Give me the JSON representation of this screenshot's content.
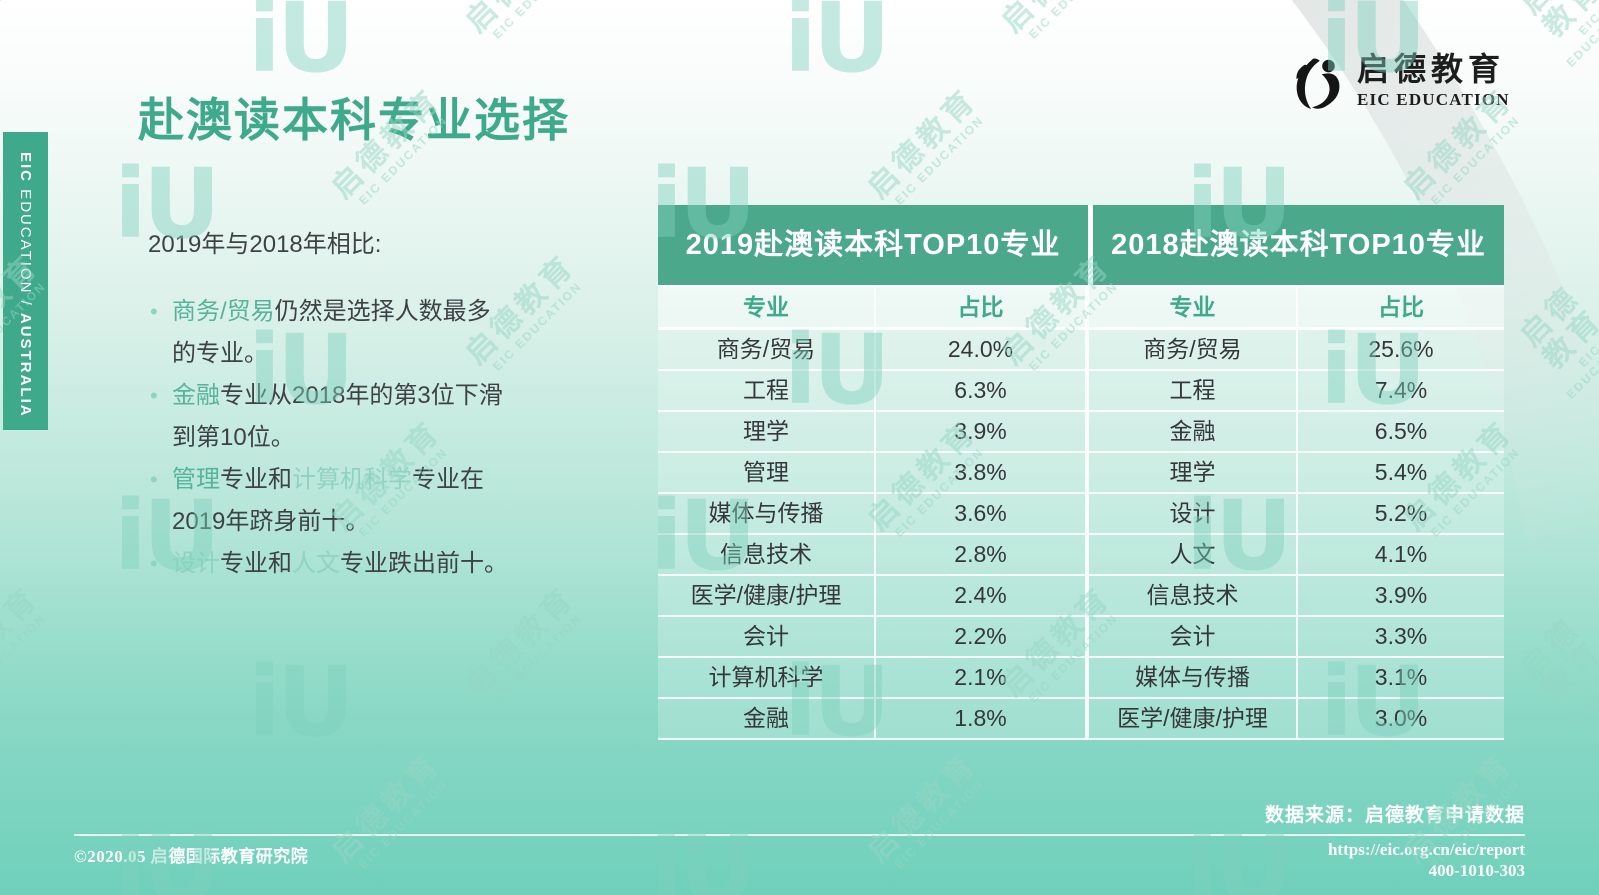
{
  "slide": {
    "title": "赴澳读本科专业选择",
    "logo": {
      "name_cn": "启德教育",
      "name_en": "EIC EDUCATION"
    },
    "side_tab": {
      "brand_bold": "EIC",
      "brand_rest": " EDUCATION / ",
      "region_bold": "AUSTRALIA"
    },
    "intro": {
      "lead": "2019年与2018年相比:",
      "bullets": [
        {
          "segments": [
            {
              "text": "商务/贸易",
              "tone": "green"
            },
            {
              "text": "仍然是选择人数最多\n的专业。",
              "tone": "plain"
            }
          ]
        },
        {
          "segments": [
            {
              "text": "金融",
              "tone": "green"
            },
            {
              "text": "专业从2018年的第3位下滑\n到第10位。",
              "tone": "plain"
            }
          ]
        },
        {
          "segments": [
            {
              "text": "管理",
              "tone": "green"
            },
            {
              "text": "专业和",
              "tone": "plain"
            },
            {
              "text": "计算机科学",
              "tone": "light"
            },
            {
              "text": "专业在\n2019年跻身前十。",
              "tone": "plain"
            }
          ]
        },
        {
          "segments": [
            {
              "text": "设计",
              "tone": "light"
            },
            {
              "text": "专业和",
              "tone": "plain"
            },
            {
              "text": "人文",
              "tone": "light"
            },
            {
              "text": "专业跌出前十。",
              "tone": "plain"
            }
          ]
        }
      ]
    },
    "footer": {
      "source": "数据来源：启德教育申请数据",
      "copyright": "©2020.05 启德国际教育研究院",
      "url": "https://eic.org.cn/eic/report",
      "phone": "400-1010-303"
    },
    "watermark": {
      "line1": "启德教育",
      "line2": "EIC EDUCATION",
      "logo_text": "iU"
    },
    "colors": {
      "accent": "#3FA98B",
      "header_bg": "#4BA88B",
      "highlight_green": "#55B49A",
      "highlight_light": "#90D3C1",
      "text_dark": "#3E4245",
      "cell_text": "#35373A",
      "bg_top": "#FFFFFF",
      "bg_bottom": "#6FD0BB",
      "swoosh_gray": "#DFE4E3"
    }
  },
  "chart_data": [
    {
      "type": "table",
      "title": "2019赴澳读本科TOP10专业",
      "columns": [
        "专业",
        "占比"
      ],
      "rows": [
        [
          "商务/贸易",
          "24.0%"
        ],
        [
          "工程",
          "6.3%"
        ],
        [
          "理学",
          "3.9%"
        ],
        [
          "管理",
          "3.8%"
        ],
        [
          "媒体与传播",
          "3.6%"
        ],
        [
          "信息技术",
          "2.8%"
        ],
        [
          "医学/健康/护理",
          "2.4%"
        ],
        [
          "会计",
          "2.2%"
        ],
        [
          "计算机科学",
          "2.1%"
        ],
        [
          "金融",
          "1.8%"
        ]
      ]
    },
    {
      "type": "table",
      "title": "2018赴澳读本科TOP10专业",
      "columns": [
        "专业",
        "占比"
      ],
      "rows": [
        [
          "商务/贸易",
          "25.6%"
        ],
        [
          "工程",
          "7.4%"
        ],
        [
          "金融",
          "6.5%"
        ],
        [
          "理学",
          "5.4%"
        ],
        [
          "设计",
          "5.2%"
        ],
        [
          "人文",
          "4.1%"
        ],
        [
          "信息技术",
          "3.9%"
        ],
        [
          "会计",
          "3.3%"
        ],
        [
          "媒体与传播",
          "3.1%"
        ],
        [
          "医学/健康/护理",
          "3.0%"
        ]
      ]
    }
  ]
}
